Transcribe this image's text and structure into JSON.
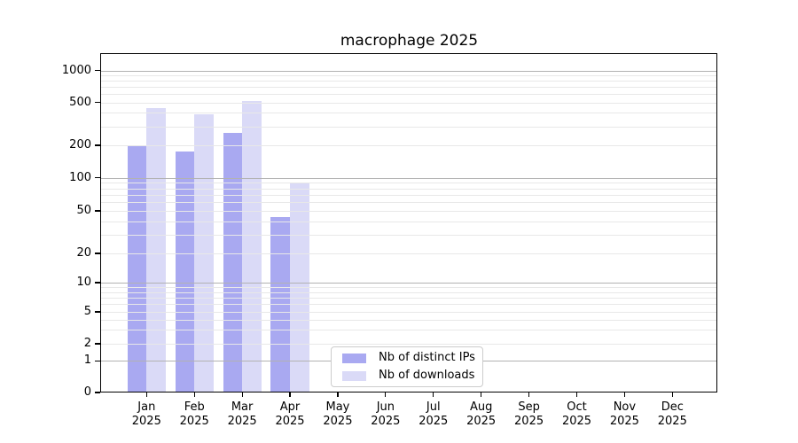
{
  "figure": {
    "background": "#ffffff"
  },
  "chart_data": {
    "type": "bar",
    "title": "macrophage 2025",
    "x": {
      "months": [
        "Jan",
        "Feb",
        "Mar",
        "Apr",
        "May",
        "Jun",
        "Jul",
        "Aug",
        "Sep",
        "Oct",
        "Nov",
        "Dec"
      ],
      "year": "2025"
    },
    "series": [
      {
        "name": "Nb of distinct IPs",
        "color": "#a9a9f1",
        "values": [
          200,
          175,
          260,
          44,
          null,
          null,
          null,
          null,
          null,
          null,
          null,
          null
        ]
      },
      {
        "name": "Nb of downloads",
        "color": "#dadaf7",
        "values": [
          440,
          390,
          515,
          91,
          null,
          null,
          null,
          null,
          null,
          null,
          null,
          null
        ]
      }
    ],
    "y_axis": {
      "scale": "log (with 0 baseline)",
      "ticks": [
        0,
        1,
        2,
        5,
        10,
        20,
        50,
        100,
        200,
        500,
        1000
      ],
      "major_gridlines": [
        1,
        10,
        100,
        1000
      ],
      "ylim": [
        0,
        1440
      ]
    },
    "legend": {
      "position": "lower center",
      "entries": [
        "Nb of distinct IPs",
        "Nb of downloads"
      ]
    },
    "grid": {
      "on": true,
      "minor_color": "#e8e8e8",
      "major_color": "#b2b2b2"
    }
  }
}
